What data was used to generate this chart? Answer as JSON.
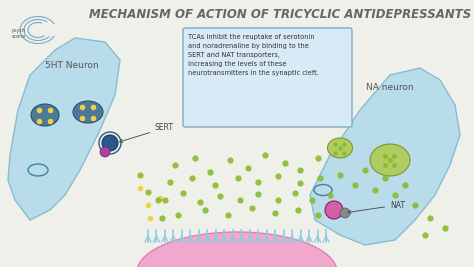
{
  "title": "MECHANISM OF ACTION OF TRICYCLIC ANTIDEPRESSANTS",
  "title_fontsize": 8.5,
  "title_color": "#666666",
  "background_color": "#f0f0eb",
  "text_box_text": "TCAs inhibit the reuptake of serotonin\nand noradrenaline by binding to the\nSERT and NAT transporters,\nincreasing the levels of these\nneurotransmitters in the synaptic cleft.",
  "label_5ht": "5HT Neuron",
  "label_na": "NA neuron",
  "label_sert": "SERT",
  "label_nat": "NAT",
  "neuron_color": "#b8dcea",
  "neuron_edge_color": "#88bcd0",
  "postsynaptic_color": "#f2a8cc",
  "postsynaptic_edge_color": "#e080b0",
  "vesicle_fill_dark": "#4a7a96",
  "vesicle_fill_green": "#b0cc60",
  "vesicle_edge_green": "#7a9830",
  "yellow_dot_color": "#f0d048",
  "green_dot_color": "#88bb30",
  "sert_color": "#2a5888",
  "nat_color": "#d060a8",
  "text_box_bg": "#d8eaf5",
  "text_box_edge": "#80aac8",
  "spike_color": "#90cce0",
  "logo_color": "#7aaac0"
}
